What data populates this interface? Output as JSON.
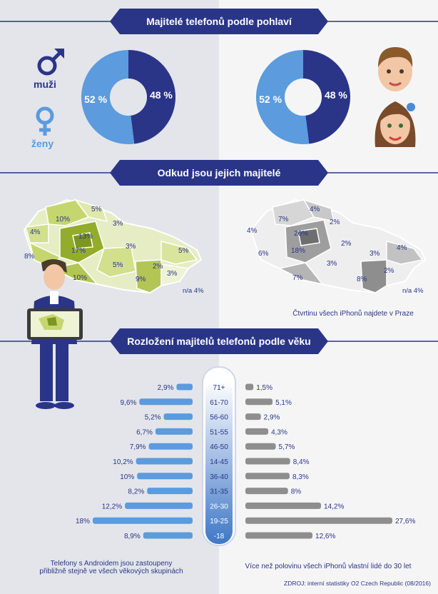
{
  "sections": {
    "gender_title": "Majitelé telefonů podle pohlaví",
    "region_title": "Odkud jsou jejich majitelé",
    "age_title": "Rozložení majitelů telefonů podle věku"
  },
  "legend": {
    "men": "muži",
    "women": "ženy"
  },
  "colors": {
    "dark_blue": "#2a3588",
    "light_blue": "#5b9bde",
    "android_green": "#c6d66e",
    "iphone_gray": "#8e8e8e"
  },
  "maps": {
    "left_na": "n/a 4%",
    "right_na": "n/a 4%",
    "right_caption": "Čtvrtinu všech iPhonů najdete v Praze",
    "android_regions": [
      "10%",
      "5%",
      "4%",
      "13%",
      "17%",
      "3%",
      "8%",
      "3%",
      "5%",
      "10%",
      "5%",
      "9%",
      "2%",
      "3%"
    ],
    "iphone_regions": [
      "7%",
      "4%",
      "4%",
      "26%",
      "2%",
      "18%",
      "2%",
      "6%",
      "3%",
      "3%",
      "4%",
      "7%",
      "8%",
      "2%"
    ]
  },
  "notes": {
    "android": "Telefony s Androidem jsou zastoupeny přibližně stejně ve všech věkových skupinách",
    "iphone": "Více než polovinu všech iPhonů vlastní lidé do 30 let",
    "source": "ZDROJ: interní statistiky O2 Czech Republic (08/2016)"
  },
  "chart_data": [
    {
      "type": "pie",
      "labels": [
        "muži",
        "ženy"
      ],
      "values": [
        48,
        52
      ],
      "value_labels": [
        "48 %",
        "52 %"
      ],
      "colors": [
        "#2a3588",
        "#5b9bde"
      ]
    },
    {
      "type": "pie",
      "labels": [
        "muži",
        "ženy"
      ],
      "values": [
        48,
        52
      ],
      "value_labels": [
        "48 %",
        "52 %"
      ],
      "colors": [
        "#2a3588",
        "#5b9bde"
      ]
    },
    {
      "type": "bar",
      "title": "Rozložení majitelů telefonů podle věku",
      "categories": [
        "71+",
        "61-70",
        "56-60",
        "51-55",
        "46-50",
        "14-45",
        "36-40",
        "31-35",
        "26-30",
        "19-25",
        "-18"
      ],
      "series": [
        {
          "values": [
            2.9,
            9.6,
            5.2,
            6.7,
            7.9,
            10.2,
            10,
            8.2,
            12.2,
            18,
            8.9
          ],
          "labels": [
            "2,9%",
            "9,6%",
            "5,2%",
            "6,7%",
            "7,9%",
            "10,2%",
            "10%",
            "8,2%",
            "12,2%",
            "18%",
            "8,9%"
          ]
        },
        {
          "values": [
            1.5,
            5.1,
            2.9,
            4.3,
            5.7,
            8.4,
            8.3,
            8,
            14.2,
            27.6,
            12.6
          ],
          "labels": [
            "1,5%",
            "5,1%",
            "2,9%",
            "4,3%",
            "5,7%",
            "8,4%",
            "8,3%",
            "8%",
            "14,2%",
            "27,6%",
            "12,6%"
          ]
        }
      ]
    }
  ]
}
